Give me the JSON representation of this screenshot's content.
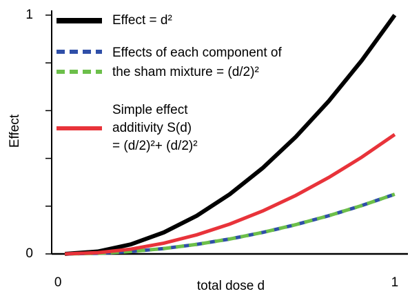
{
  "chart_data": {
    "type": "line",
    "x_label": "total dose d",
    "y_label": "Effect",
    "x": [
      0,
      0.1,
      0.2,
      0.3,
      0.4,
      0.5,
      0.6,
      0.7,
      0.8,
      0.9,
      1
    ],
    "series": [
      {
        "name": [
          "Effect = d²"
        ],
        "color": "#000000",
        "dashed": false,
        "values": [
          0,
          0.01,
          0.04,
          0.09,
          0.16,
          0.25,
          0.36,
          0.49,
          0.64,
          0.81,
          1
        ]
      },
      {
        "name": [
          "Effects of each component of"
        ],
        "color": "#2f4fa8",
        "dashed": true,
        "values": [
          0,
          0.0025,
          0.01,
          0.0225,
          0.04,
          0.0625,
          0.09,
          0.1225,
          0.16,
          0.2025,
          0.25
        ]
      },
      {
        "name": [
          "the sham mixture = (d/2)²"
        ],
        "color": "#6cbf4a",
        "dashed": true,
        "values": [
          0,
          0.0025,
          0.01,
          0.0225,
          0.04,
          0.0625,
          0.09,
          0.1225,
          0.16,
          0.2025,
          0.25
        ]
      },
      {
        "name": [
          "Simple effect",
          "additivity S(d)",
          "= (d/2)²+ (d/2)²"
        ],
        "color": "#e8333a",
        "dashed": false,
        "values": [
          0,
          0.005,
          0.02,
          0.045,
          0.08,
          0.125,
          0.18,
          0.245,
          0.32,
          0.405,
          0.5
        ]
      }
    ],
    "xlim": [
      -0.04,
      1.04
    ],
    "ylim": [
      0,
      1.02
    ],
    "xticks": [
      0,
      1
    ],
    "yticks": [
      0,
      1
    ],
    "yminorticks": [
      0.2,
      0.4,
      0.6,
      0.8
    ]
  }
}
